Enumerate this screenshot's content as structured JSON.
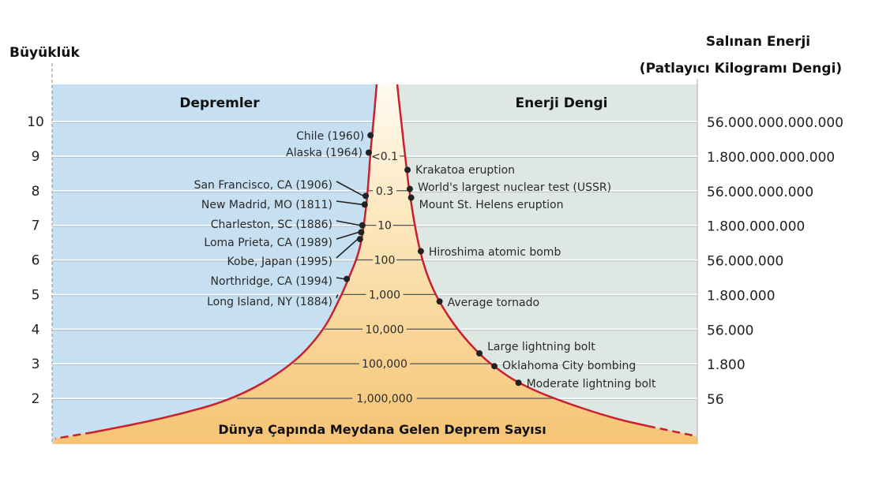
{
  "y_axis_title": "Büyüklük",
  "right_axis_title_line1": "Salınan Enerji",
  "right_axis_title_line2": "(Patlayıcı Kilogramı Dengi)",
  "left_panel_title": "Depremler",
  "right_panel_title": "Enerji Dengi",
  "bottom_title": "Dünya Çapında Meydana Gelen Deprem Sayısı",
  "colors": {
    "left_bg": "#c6dff1",
    "right_bg": "#dfe7e3",
    "cone_top": "#fffaf0",
    "cone_bottom": "#f6c474",
    "curve": "#c8202f",
    "dot": "#222222"
  },
  "chart_data": {
    "type": "diagram",
    "magnitude_ticks": [
      "10",
      "9",
      "8",
      "7",
      "6",
      "5",
      "4",
      "3",
      "2"
    ],
    "magnitude_range": [
      1,
      11
    ],
    "energy_labels": [
      {
        "magnitude": 10,
        "label": "56.000.000.000.000"
      },
      {
        "magnitude": 9,
        "label": "1.800.000.000.000"
      },
      {
        "magnitude": 8,
        "label": "56.000.000.000"
      },
      {
        "magnitude": 7,
        "label": "1.800.000.000"
      },
      {
        "magnitude": 6,
        "label": "56.000.000"
      },
      {
        "magnitude": 5,
        "label": "1.800.000"
      },
      {
        "magnitude": 4,
        "label": "56.000"
      },
      {
        "magnitude": 3,
        "label": "1.800"
      },
      {
        "magnitude": 2,
        "label": "56"
      }
    ],
    "yearly_counts": [
      {
        "magnitude": 9,
        "label": "<0.1"
      },
      {
        "magnitude": 8,
        "label": "0.3"
      },
      {
        "magnitude": 7,
        "label": "10"
      },
      {
        "magnitude": 6,
        "label": "100"
      },
      {
        "magnitude": 5,
        "label": "1,000"
      },
      {
        "magnitude": 4,
        "label": "10,000"
      },
      {
        "magnitude": 3,
        "label": "100,000"
      },
      {
        "magnitude": 2,
        "label": "1,000,000"
      }
    ],
    "earthquakes": [
      {
        "label": "Chile (1960)",
        "magnitude": 9.6
      },
      {
        "label": "Alaska (1964)",
        "magnitude": 9.1
      },
      {
        "label": "San Francisco, CA (1906)",
        "magnitude": 7.85
      },
      {
        "label": "New Madrid, MO (1811)",
        "magnitude": 7.6
      },
      {
        "label": "Charleston, SC (1886)",
        "magnitude": 7.0
      },
      {
        "label": "Loma Prieta, CA (1989)",
        "magnitude": 6.8
      },
      {
        "label": "Kobe, Japan (1995)",
        "magnitude": 6.6
      },
      {
        "label": "Northridge, CA (1994)",
        "magnitude": 5.45
      },
      {
        "label": "Long Island, NY (1884)",
        "magnitude": 5.0
      }
    ],
    "energy_events": [
      {
        "label": "Krakatoa eruption",
        "magnitude": 8.6
      },
      {
        "label": "World's largest nuclear test (USSR)",
        "magnitude": 8.05
      },
      {
        "label": "Mount St. Helens eruption",
        "magnitude": 7.8
      },
      {
        "label": "Hiroshima atomic bomb",
        "magnitude": 6.25
      },
      {
        "label": "Average tornado",
        "magnitude": 4.8
      },
      {
        "label": "Large lightning bolt",
        "magnitude": 3.3
      },
      {
        "label": "Oklahoma City bombing",
        "magnitude": 2.93
      },
      {
        "label": "Moderate lightning bolt",
        "magnitude": 2.45
      }
    ]
  }
}
